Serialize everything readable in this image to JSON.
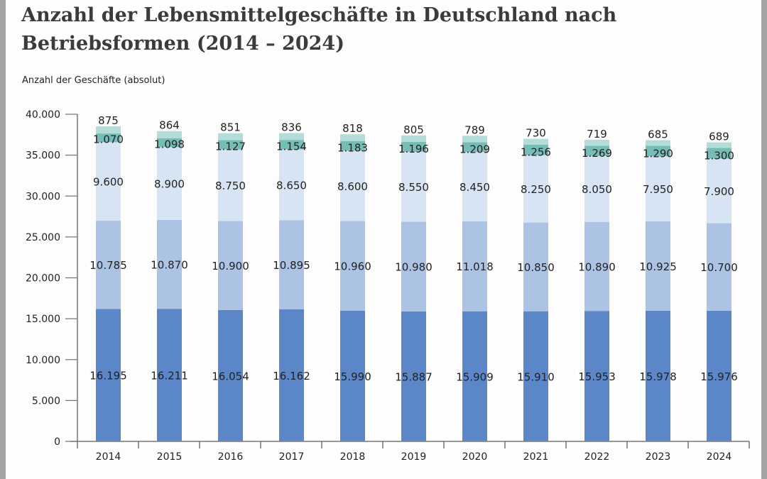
{
  "chart_data": {
    "type": "bar",
    "stacked": true,
    "title": "Anzahl der Lebensmittelgeschäfte in Deutschland nach Betriebsformen (2014 – 2024)",
    "ylabel": "Anzahl der Geschäfte (absolut)",
    "xlabel": "",
    "ylim": [
      0,
      40000
    ],
    "yticks": [
      0,
      5000,
      10000,
      15000,
      20000,
      25000,
      30000,
      35000,
      40000
    ],
    "ytick_labels": [
      "0",
      "5.000",
      "10.000",
      "15.000",
      "20.000",
      "25.000",
      "30.000",
      "35.000",
      "40.000"
    ],
    "grid": false,
    "legend": "none",
    "categories": [
      "2014",
      "2015",
      "2016",
      "2017",
      "2018",
      "2019",
      "2020",
      "2021",
      "2022",
      "2023",
      "2024"
    ],
    "series": [
      {
        "color": "#5b87c8",
        "values": [
          16195,
          16211,
          16054,
          16162,
          15990,
          15887,
          15909,
          15910,
          15953,
          15978,
          15976
        ],
        "labels": [
          "16.195",
          "16.211",
          "16.054",
          "16.162",
          "15.990",
          "15.887",
          "15.909",
          "15.910",
          "15.953",
          "15.978",
          "15.976"
        ]
      },
      {
        "color": "#adc3e4",
        "values": [
          10785,
          10870,
          10900,
          10895,
          10960,
          10980,
          11018,
          10850,
          10890,
          10925,
          10700
        ],
        "labels": [
          "10.785",
          "10.870",
          "10.900",
          "10.895",
          "10.960",
          "10.980",
          "11.018",
          "10.850",
          "10.890",
          "10.925",
          "10.700"
        ]
      },
      {
        "color": "#d7e4f4",
        "values": [
          9600,
          8900,
          8750,
          8650,
          8600,
          8550,
          8450,
          8250,
          8050,
          7950,
          7900
        ],
        "labels": [
          "9.600",
          "8.900",
          "8.750",
          "8.650",
          "8.600",
          "8.550",
          "8.450",
          "8.250",
          "8.050",
          "7.950",
          "7.900"
        ]
      },
      {
        "color": "#76bdb8",
        "values": [
          1070,
          1098,
          1127,
          1154,
          1183,
          1196,
          1209,
          1256,
          1269,
          1290,
          1300
        ],
        "labels": [
          "1.070",
          "1.098",
          "1.127",
          "1.154",
          "1.183",
          "1.196",
          "1.209",
          "1.256",
          "1.269",
          "1.290",
          "1.300"
        ]
      },
      {
        "color": "#b4dcd9",
        "values": [
          875,
          864,
          851,
          836,
          818,
          805,
          789,
          730,
          719,
          685,
          689
        ],
        "labels": [
          "875",
          "864",
          "851",
          "836",
          "818",
          "805",
          "789",
          "730",
          "719",
          "685",
          "689"
        ]
      }
    ]
  }
}
